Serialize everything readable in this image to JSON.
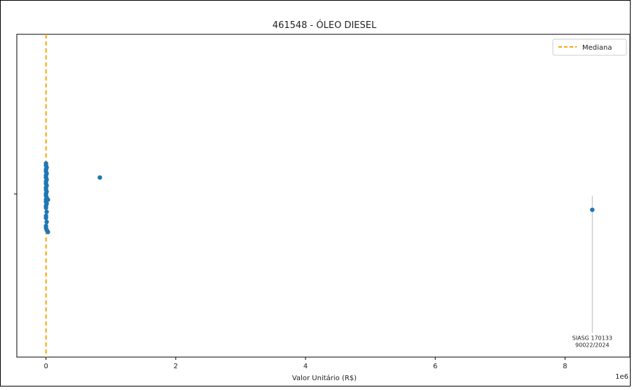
{
  "chart_data": {
    "type": "scatter",
    "title": "461548 - ÓLEO DIESEL",
    "xlabel": "Valor Unitário (R$)",
    "ylabel": "",
    "x_offset_text": "1e6",
    "xlim": [
      -0.45,
      9.0
    ],
    "ylim": [
      -0.8,
      0.8
    ],
    "x_ticks": [
      {
        "value": 0,
        "label": "0"
      },
      {
        "value": 2,
        "label": "2"
      },
      {
        "value": 4,
        "label": "4"
      },
      {
        "value": 6,
        "label": "6"
      },
      {
        "value": 8,
        "label": "8"
      }
    ],
    "legend": {
      "position": "top-right",
      "entries": [
        {
          "label": "Mediana",
          "style": "dashed",
          "color": "#ffa500"
        }
      ]
    },
    "median_line": {
      "x": 0.0,
      "color": "#ffa500"
    },
    "point_color": "#1f77b4",
    "points": [
      {
        "x": 0.0,
        "y": 0.16
      },
      {
        "x": 0.0,
        "y": 0.15
      },
      {
        "x": 0.01,
        "y": 0.14
      },
      {
        "x": 0.0,
        "y": 0.13
      },
      {
        "x": 0.0,
        "y": 0.12
      },
      {
        "x": 0.01,
        "y": 0.11
      },
      {
        "x": 0.0,
        "y": 0.1
      },
      {
        "x": 0.0,
        "y": 0.09
      },
      {
        "x": 0.01,
        "y": 0.08
      },
      {
        "x": 0.0,
        "y": 0.07
      },
      {
        "x": 0.0,
        "y": 0.06
      },
      {
        "x": 0.01,
        "y": 0.05
      },
      {
        "x": 0.0,
        "y": 0.04
      },
      {
        "x": 0.0,
        "y": 0.03
      },
      {
        "x": 0.01,
        "y": 0.02
      },
      {
        "x": 0.0,
        "y": 0.01
      },
      {
        "x": 0.0,
        "y": 0.0
      },
      {
        "x": 0.01,
        "y": -0.01
      },
      {
        "x": 0.0,
        "y": -0.02
      },
      {
        "x": 0.03,
        "y": -0.02
      },
      {
        "x": 0.0,
        "y": -0.03
      },
      {
        "x": 0.01,
        "y": -0.04
      },
      {
        "x": 0.0,
        "y": -0.05
      },
      {
        "x": 0.0,
        "y": -0.06
      },
      {
        "x": 0.01,
        "y": -0.08
      },
      {
        "x": 0.0,
        "y": -0.1
      },
      {
        "x": 0.0,
        "y": -0.11
      },
      {
        "x": 0.01,
        "y": -0.13
      },
      {
        "x": 0.0,
        "y": -0.15
      },
      {
        "x": 0.0,
        "y": -0.16
      },
      {
        "x": 0.01,
        "y": -0.17
      },
      {
        "x": 0.03,
        "y": -0.18
      },
      {
        "x": 0.83,
        "y": 0.09
      },
      {
        "x": 8.42,
        "y": -0.07
      }
    ],
    "annotation": {
      "x": 8.42,
      "line_from_y": 0.0,
      "line_to_y": -0.68,
      "lines": [
        "SIASG 170133",
        "90022/2024"
      ]
    }
  }
}
